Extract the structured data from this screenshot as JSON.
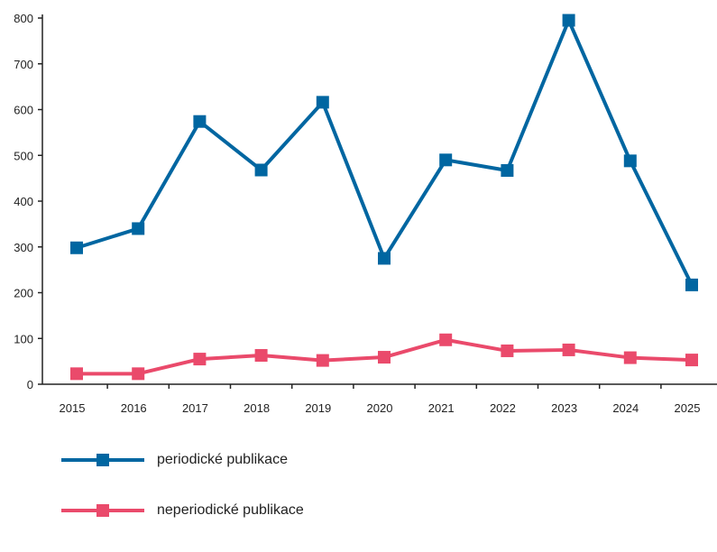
{
  "chart_data": {
    "type": "line",
    "title": "",
    "xlabel": "",
    "ylabel": "",
    "categories": [
      "2015",
      "2016",
      "2017",
      "2018",
      "2019",
      "2020",
      "2021",
      "2022",
      "2023",
      "2024",
      "2025"
    ],
    "ylim": [
      0,
      800
    ],
    "yticks": [
      0,
      100,
      200,
      300,
      400,
      500,
      600,
      700,
      800
    ],
    "grid": false,
    "legend_position": "bottom-left",
    "series": [
      {
        "name": "periodické publikace",
        "color": "#0066a1",
        "marker": "square",
        "values": [
          298,
          340,
          574,
          468,
          616,
          275,
          490,
          467,
          795,
          488,
          217
        ]
      },
      {
        "name": "neperiodické publikace",
        "color": "#ea4a6b",
        "marker": "square",
        "values": [
          23,
          23,
          55,
          63,
          52,
          59,
          97,
          73,
          75,
          58,
          53
        ]
      }
    ]
  }
}
